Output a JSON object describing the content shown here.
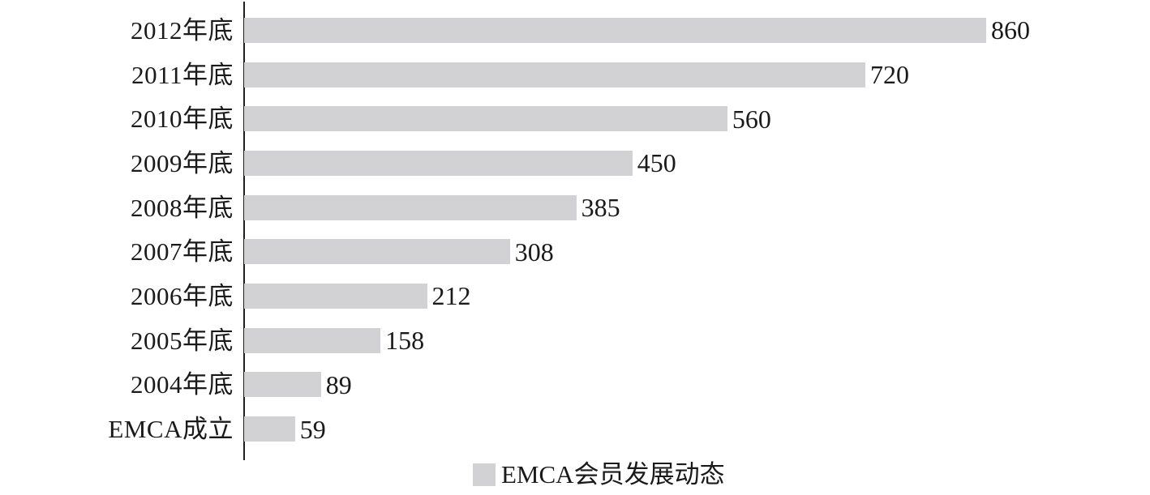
{
  "chart_data": {
    "type": "bar",
    "orientation": "horizontal",
    "title": "",
    "xlabel": "",
    "ylabel": "",
    "categories": [
      "2012年底",
      "2011年底",
      "2010年底",
      "2009年底",
      "2008年底",
      "2007年底",
      "2006年底",
      "2005年底",
      "2004年底",
      "EMCA成立"
    ],
    "values": [
      860,
      720,
      560,
      450,
      385,
      308,
      212,
      158,
      89,
      59
    ],
    "series": [
      {
        "name": "EMCA会员发展动态",
        "values": [
          860,
          720,
          560,
          450,
          385,
          308,
          212,
          158,
          89,
          59
        ]
      }
    ],
    "value_labels_shown": true,
    "grid": false,
    "legend_position": "bottom",
    "bar_color": "#d2d2d4",
    "axis_color": "#1f1f1f",
    "text_color": "#1a1a1a"
  },
  "legend": {
    "label": "EMCA会员发展动态",
    "swatch_icon": "legend-swatch-icon"
  }
}
